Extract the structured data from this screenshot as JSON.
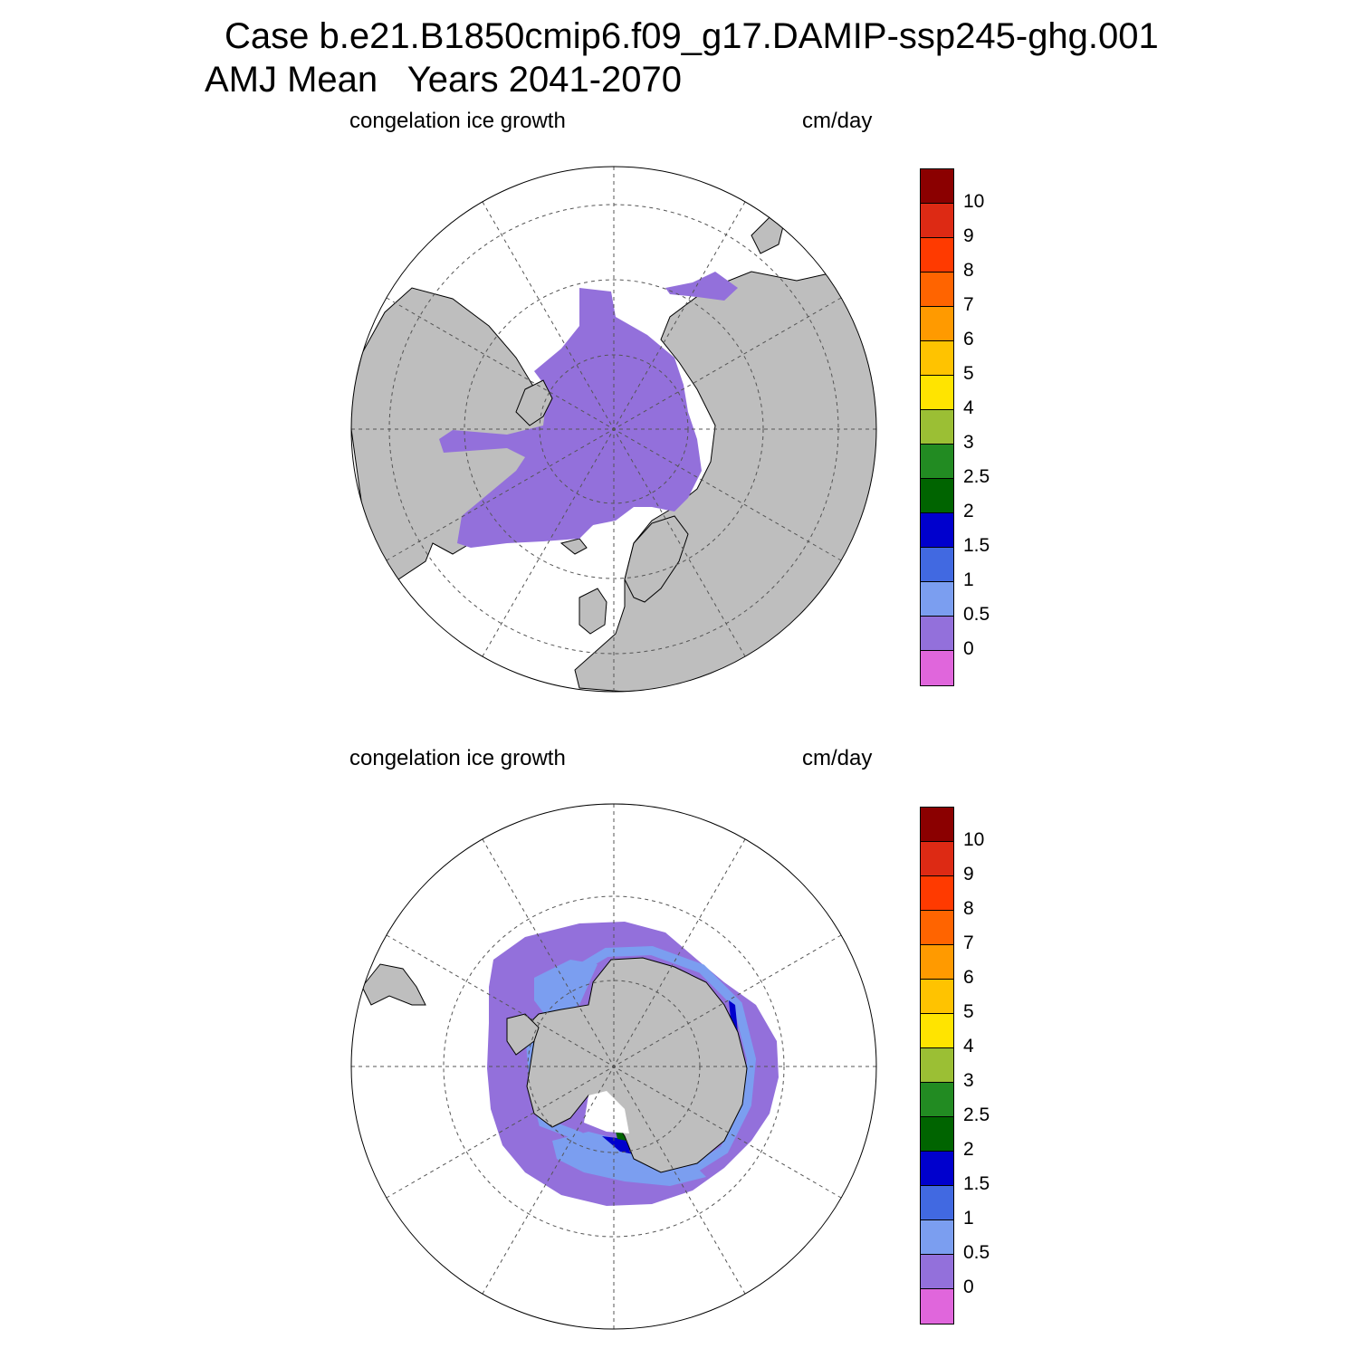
{
  "title": {
    "line1": "Case b.e21.B1850cmip6.f09_g17.DAMIP-ssp245-ghg.001",
    "line2": "AMJ Mean   Years 2041-2070"
  },
  "panels": [
    {
      "variable": "congelation ice growth",
      "units": "cm/day",
      "hemisphere": "north"
    },
    {
      "variable": "congelation ice growth",
      "units": "cm/day",
      "hemisphere": "south"
    }
  ],
  "colorbar": {
    "labels": [
      "10",
      "9",
      "8",
      "7",
      "6",
      "5",
      "4",
      "3",
      "2.5",
      "2",
      "1.5",
      "1",
      "0.5",
      "0"
    ],
    "colors": [
      "#8b0000",
      "#dd2a14",
      "#ff3a00",
      "#ff6400",
      "#ff9a00",
      "#ffc300",
      "#ffe400",
      "#9bbf34",
      "#228b22",
      "#006400",
      "#0000cd",
      "#4169e1",
      "#7b9ef0",
      "#9370db",
      "#e066dc"
    ]
  },
  "colors": {
    "land": "#bebebe",
    "ice_low": "#9370db",
    "ice_mid": "#7b9ef0",
    "ice_high": "#0000cd"
  }
}
